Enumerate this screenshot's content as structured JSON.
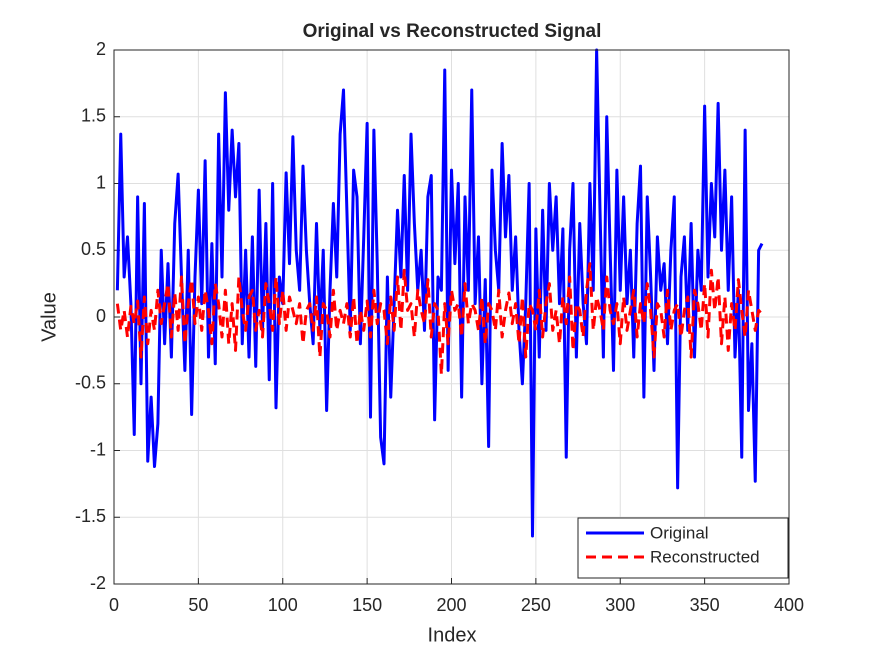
{
  "chart_data": {
    "type": "line",
    "title": "Original vs Reconstructed Signal",
    "x_label": "Index",
    "y_label": "Value",
    "x": [
      2,
      4,
      6,
      8,
      10,
      12,
      14,
      16,
      18,
      20,
      22,
      24,
      26,
      28,
      30,
      32,
      34,
      36,
      38,
      40,
      42,
      44,
      46,
      48,
      50,
      52,
      54,
      56,
      58,
      60,
      62,
      64,
      66,
      68,
      70,
      72,
      74,
      76,
      78,
      80,
      82,
      84,
      86,
      88,
      90,
      92,
      94,
      96,
      98,
      100,
      102,
      104,
      106,
      108,
      110,
      112,
      114,
      116,
      118,
      120,
      122,
      124,
      126,
      128,
      130,
      132,
      134,
      136,
      138,
      140,
      142,
      144,
      146,
      148,
      150,
      152,
      154,
      156,
      158,
      160,
      162,
      164,
      166,
      168,
      170,
      172,
      174,
      176,
      178,
      180,
      182,
      184,
      186,
      188,
      190,
      192,
      194,
      196,
      198,
      200,
      202,
      204,
      206,
      208,
      210,
      212,
      214,
      216,
      218,
      220,
      222,
      224,
      226,
      228,
      230,
      232,
      234,
      236,
      238,
      240,
      242,
      244,
      246,
      248,
      250,
      252,
      254,
      256,
      258,
      260,
      262,
      264,
      266,
      268,
      270,
      272,
      274,
      276,
      278,
      280,
      282,
      284,
      286,
      288,
      290,
      292,
      294,
      296,
      298,
      300,
      302,
      304,
      306,
      308,
      310,
      312,
      314,
      316,
      318,
      320,
      322,
      324,
      326,
      328,
      330,
      332,
      334,
      336,
      338,
      340,
      342,
      344,
      346,
      348,
      350,
      352,
      354,
      356,
      358,
      360,
      362,
      364,
      366,
      368,
      370,
      372,
      374,
      376,
      378,
      380,
      382,
      384
    ],
    "series": [
      {
        "name": "Original",
        "color": "#0000ff",
        "dash": "solid",
        "values": [
          0.2,
          1.37,
          0.3,
          0.6,
          0.1,
          -0.88,
          0.9,
          -0.5,
          0.85,
          -1.08,
          -0.6,
          -1.12,
          -0.8,
          0.5,
          -0.2,
          0.4,
          -0.3,
          0.7,
          1.07,
          0.3,
          -0.4,
          0.5,
          -0.73,
          0.3,
          0.95,
          0.1,
          1.17,
          -0.3,
          0.55,
          -0.35,
          1.37,
          0.3,
          1.68,
          0.8,
          1.4,
          0.9,
          1.3,
          -0.2,
          0.5,
          -0.3,
          0.6,
          -0.37,
          0.95,
          -0.1,
          0.7,
          -0.47,
          1.0,
          -0.68,
          0.3,
          0.1,
          1.08,
          0.4,
          1.35,
          0.5,
          0.2,
          1.13,
          0.5,
          0.1,
          -0.2,
          0.7,
          -0.1,
          0.5,
          -0.7,
          0.2,
          0.85,
          0.3,
          1.37,
          1.7,
          0.8,
          -0.1,
          1.1,
          0.9,
          -0.2,
          0.6,
          1.45,
          -0.75,
          1.4,
          0.4,
          -0.9,
          -1.1,
          0.3,
          -0.6,
          0.1,
          0.8,
          0.3,
          1.06,
          0.2,
          1.37,
          0.7,
          0.2,
          0.5,
          -0.1,
          0.9,
          1.06,
          -0.77,
          0.3,
          0.2,
          1.85,
          -0.4,
          1.1,
          0.4,
          1.0,
          -0.6,
          0.9,
          0.2,
          1.7,
          0.1,
          0.6,
          -0.5,
          0.28,
          -0.97,
          1.1,
          0.5,
          0.2,
          1.3,
          0.6,
          1.06,
          0.2,
          0.6,
          -0.1,
          -0.5,
          0.1,
          1.0,
          -1.64,
          0.66,
          -0.3,
          0.8,
          -0.1,
          1.0,
          0.5,
          0.9,
          0.1,
          0.66,
          -1.05,
          0.5,
          1.0,
          -0.3,
          0.7,
          0.1,
          -0.2,
          1.0,
          0.2,
          2.0,
          0.8,
          -0.3,
          1.5,
          0.5,
          -0.4,
          1.1,
          0.2,
          0.9,
          0.1,
          0.5,
          -0.3,
          0.7,
          1.13,
          -0.6,
          0.9,
          0.3,
          -0.4,
          0.6,
          0.2,
          0.4,
          -0.2,
          0.5,
          0.9,
          -1.28,
          0.3,
          0.6,
          -0.1,
          0.7,
          -0.3,
          0.5,
          0.2,
          1.58,
          0.3,
          1.0,
          0.6,
          1.6,
          0.5,
          1.1,
          0.2,
          0.9,
          -0.3,
          0.2,
          -1.05,
          1.4,
          -0.7,
          -0.2,
          -1.23,
          0.5,
          0.55
        ]
      },
      {
        "name": "Reconstructed",
        "color": "#ff0000",
        "dash": "dashed",
        "values": [
          0.1,
          -0.1,
          0.05,
          -0.15,
          0.08,
          -0.05,
          0.12,
          -0.3,
          0.15,
          -0.2,
          0.05,
          -0.1,
          0.2,
          -0.05,
          0.1,
          0.25,
          -0.15,
          0.18,
          -0.1,
          0.3,
          -0.2,
          0.1,
          0.28,
          -0.05,
          0.15,
          -0.1,
          0.2,
          0.05,
          -0.2,
          0.25,
          0.1,
          -0.15,
          0.2,
          -0.2,
          0.1,
          -0.25,
          0.3,
          0.05,
          -0.1,
          0.15,
          0.2,
          -0.1,
          0.05,
          -0.15,
          0.25,
          0.1,
          -0.1,
          0.3,
          -0.05,
          0.2,
          -0.1,
          0.15,
          0.05,
          -0.05,
          0.1,
          -0.2,
          0.05,
          0.1,
          -0.1,
          0.15,
          -0.3,
          0.1,
          0.05,
          -0.15,
          0.2,
          -0.1,
          0.05,
          -0.05,
          0.1,
          -0.15,
          0.15,
          -0.2,
          0.05,
          -0.1,
          0.12,
          -0.15,
          0.2,
          -0.05,
          0.1,
          0.05,
          -0.2,
          0.15,
          -0.1,
          0.3,
          -0.1,
          0.35,
          0.05,
          0.1,
          -0.15,
          0.2,
          0.05,
          -0.05,
          0.28,
          -0.15,
          0.1,
          0.05,
          -0.43,
          0.1,
          -0.2,
          0.2,
          0.05,
          0.1,
          -0.15,
          0.25,
          -0.05,
          0.1,
          0.05,
          -0.1,
          0.15,
          -0.2,
          0.1,
          0.05,
          -0.1,
          0.2,
          -0.15,
          0.05,
          0.18,
          -0.05,
          0.1,
          -0.2,
          0.15,
          -0.3,
          0.1,
          0.05,
          -0.1,
          0.2,
          -0.15,
          0.1,
          0.25,
          -0.1,
          0.05,
          -0.2,
          0.15,
          -0.05,
          0.3,
          -0.25,
          0.1,
          0.05,
          -0.15,
          0.2,
          0.4,
          -0.1,
          0.15,
          0.05,
          -0.1,
          0.3,
          0.05,
          -0.05,
          0.1,
          -0.2,
          0.15,
          -0.1,
          0.05,
          0.2,
          -0.15,
          0.1,
          -0.05,
          0.25,
          0.05,
          -0.3,
          0.1,
          0.05,
          -0.15,
          0.2,
          -0.1,
          0.05,
          0.1,
          -0.15,
          0.05,
          0.15,
          -0.3,
          0.2,
          0.1,
          -0.1,
          0.25,
          -0.15,
          0.35,
          0.05,
          0.3,
          -0.2,
          0.15,
          -0.25,
          0.1,
          -0.1,
          0.28,
          0.05,
          -0.15,
          0.2,
          0.05,
          -0.1,
          0.05,
          0.02
        ]
      }
    ],
    "xlim": [
      0,
      400
    ],
    "xticks": [
      0,
      50,
      100,
      150,
      200,
      250,
      300,
      350,
      400
    ],
    "ylim": [
      -2,
      2
    ],
    "yticks": [
      -2,
      -1.5,
      -1,
      -0.5,
      0,
      0.5,
      1,
      1.5,
      2
    ],
    "grid": true,
    "legend": "lower right"
  }
}
